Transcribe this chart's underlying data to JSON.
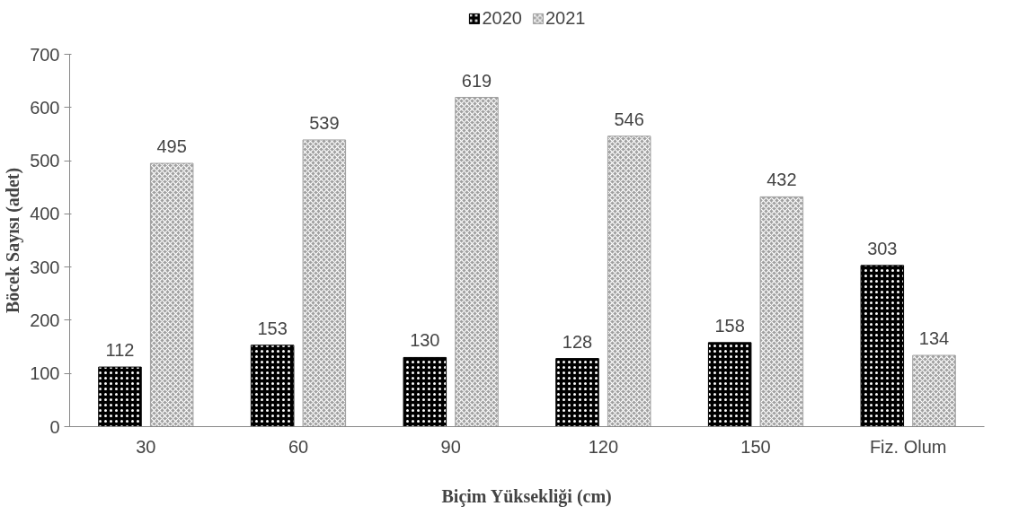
{
  "chart_data": {
    "type": "bar",
    "xlabel": "Biçim Yüksekliği (cm)",
    "ylabel": "Böcek Sayısı (adet)",
    "categories": [
      "30",
      "60",
      "90",
      "120",
      "150",
      "Fiz. Olum"
    ],
    "series": [
      {
        "name": "2020",
        "color": "#000000",
        "values": [
          112,
          153,
          130,
          128,
          158,
          303
        ]
      },
      {
        "name": "2021",
        "color": "#a0a0a0",
        "values": [
          495,
          539,
          619,
          546,
          432,
          134
        ]
      }
    ],
    "ylim": [
      0,
      700
    ],
    "yticks": [
      0,
      100,
      200,
      300,
      400,
      500,
      600,
      700
    ],
    "grid": false,
    "legend": "top",
    "data_labels": true
  }
}
